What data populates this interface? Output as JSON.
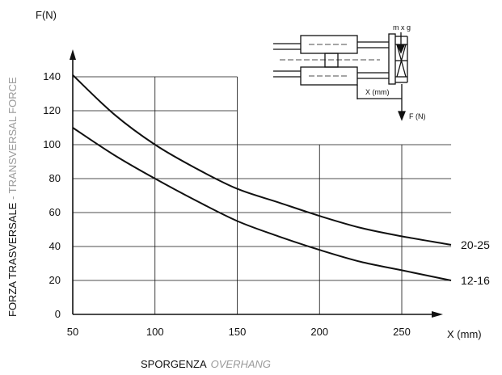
{
  "chart_data": {
    "type": "line",
    "x_unit_label": "X (mm)",
    "y_unit_label": "F(N)",
    "ylabel": "FORZA TRASVERSALE",
    "ylabel_en": "TRANSVERSAL FORCE",
    "ylabel_separator": " - ",
    "xlabel": "SPORGENZA",
    "xlabel_en": "OVERHANG",
    "xlim": [
      50,
      280
    ],
    "ylim": [
      0,
      150
    ],
    "x_ticks": [
      50,
      100,
      150,
      200,
      250
    ],
    "y_ticks": [
      0,
      20,
      40,
      60,
      80,
      100,
      120,
      140
    ],
    "grid": true,
    "series": [
      {
        "name": "20-25",
        "x": [
          50,
          75,
          100,
          125,
          150,
          175,
          200,
          225,
          250,
          280
        ],
        "values": [
          141,
          118,
          100,
          86,
          74,
          66,
          58,
          51,
          46,
          41
        ]
      },
      {
        "name": "12-16",
        "x": [
          50,
          75,
          100,
          125,
          150,
          175,
          200,
          225,
          250,
          280
        ],
        "values": [
          110,
          94,
          80,
          67,
          55,
          46,
          38,
          31,
          26,
          20
        ]
      }
    ],
    "inset": {
      "mass_label": "m x g",
      "distance_label": "X (mm)",
      "force_label": "F (N)"
    }
  }
}
